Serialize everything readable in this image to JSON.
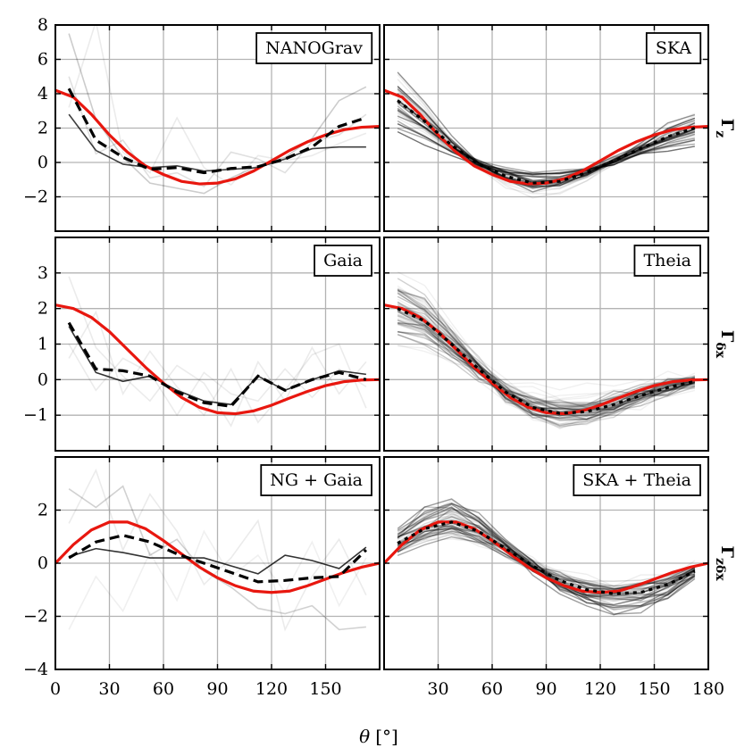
{
  "chart_data": {
    "type": "line",
    "figure": {
      "xlabel": "θ [°]",
      "xlabel_symbol": "θ",
      "xlabel_unit": "[°]",
      "xlim": [
        0,
        180
      ],
      "colors": {
        "theory": "#e8170f",
        "mean": "#000000",
        "realization": "#000000",
        "grid": "#b3b3b3"
      },
      "line_styles": {
        "theory": "solid red",
        "left_mean": "dashed black",
        "right_mean": "dotted black over red",
        "realizations": "thin grey"
      }
    },
    "x_ticks": {
      "left": [
        "0",
        "30",
        "60",
        "90",
        "120",
        "150"
      ],
      "right": [
        "30",
        "60",
        "90",
        "120",
        "150",
        "180"
      ]
    },
    "row_labels": [
      {
        "main": "Γ",
        "sub": "z"
      },
      {
        "main": "Γ",
        "sub": "δx"
      },
      {
        "main": "Γ",
        "sub": "zδx"
      }
    ],
    "panels": [
      {
        "id": "nanograv",
        "label": "NANOGrav",
        "row": 0,
        "col": 0,
        "ylim": [
          -4,
          8
        ],
        "yticks": [
          -2,
          0,
          2,
          4,
          6,
          8
        ],
        "ytick_labels": [
          "−2",
          "0",
          "2",
          "4",
          "6",
          "8"
        ],
        "theory": {
          "x": [
            0,
            10,
            20,
            30,
            40,
            50,
            60,
            70,
            80,
            90,
            100,
            110,
            120,
            130,
            140,
            150,
            160,
            170,
            180
          ],
          "y": [
            4.2,
            3.8,
            2.8,
            1.6,
            0.6,
            -0.2,
            -0.7,
            -1.1,
            -1.25,
            -1.2,
            -0.95,
            -0.5,
            0.1,
            0.7,
            1.2,
            1.6,
            1.9,
            2.05,
            2.1
          ]
        },
        "mean": {
          "x": [
            7.5,
            22.5,
            37.5,
            52.5,
            67.5,
            82.5,
            97.5,
            112.5,
            127.5,
            142.5,
            157.5,
            172.5
          ],
          "y": [
            4.3,
            1.3,
            0.3,
            -0.4,
            -0.3,
            -0.6,
            -0.35,
            -0.25,
            0.2,
            0.9,
            2.1,
            2.6
          ]
        },
        "realizations": [
          {
            "x": [
              7.5,
              22.5,
              37.5,
              52.5,
              67.5,
              82.5,
              97.5,
              112.5,
              127.5,
              142.5,
              157.5,
              172.5
            ],
            "y": [
              2.8,
              0.7,
              -0.1,
              -0.3,
              -0.2,
              -0.5,
              -0.4,
              -0.3,
              0.2,
              0.8,
              0.9,
              0.9
            ],
            "opacity": 0.75
          },
          {
            "x": [
              7.5,
              22.5,
              37.5,
              52.5,
              67.5,
              82.5,
              97.5,
              112.5,
              127.5,
              142.5,
              157.5,
              172.5
            ],
            "y": [
              7.5,
              2.5,
              0.3,
              -1.2,
              -1.5,
              -1.8,
              -0.9,
              -0.2,
              0.3,
              1.4,
              3.6,
              4.4
            ],
            "opacity": 0.2
          },
          {
            "x": [
              7.5,
              22.5,
              37.5,
              52.5,
              67.5,
              82.5,
              97.5,
              112.5,
              127.5,
              142.5,
              157.5,
              172.5
            ],
            "y": [
              5.0,
              0.5,
              1.3,
              -0.9,
              -0.6,
              -1.4,
              0.6,
              0.2,
              -0.6,
              1.2,
              1.6,
              2.8
            ],
            "opacity": 0.12
          },
          {
            "x": [
              7.5,
              22.5,
              37.5,
              52.5,
              67.5,
              82.5,
              97.5,
              112.5,
              127.5,
              142.5,
              157.5,
              172.5
            ],
            "y": [
              3.2,
              8.2,
              0.6,
              -0.6,
              2.6,
              -0.3,
              -1.3,
              0.4,
              0.1,
              0.4,
              1.1,
              1.7
            ],
            "opacity": 0.08
          }
        ]
      },
      {
        "id": "ska",
        "label": "SKA",
        "row": 0,
        "col": 1,
        "ylim": [
          -4,
          8
        ],
        "yticks": [
          -2,
          0,
          2,
          4,
          6,
          8
        ],
        "ytick_labels": [
          "−2",
          "0",
          "2",
          "4",
          "6",
          "8"
        ],
        "theory": {
          "x": [
            0,
            10,
            20,
            30,
            40,
            50,
            60,
            70,
            80,
            90,
            100,
            110,
            120,
            130,
            140,
            150,
            160,
            170,
            180
          ],
          "y": [
            4.2,
            3.8,
            2.8,
            1.6,
            0.6,
            -0.2,
            -0.7,
            -1.1,
            -1.25,
            -1.2,
            -0.95,
            -0.5,
            0.1,
            0.7,
            1.2,
            1.6,
            1.9,
            2.05,
            2.1
          ]
        },
        "mean": {
          "x": [
            7.5,
            22.5,
            37.5,
            52.5,
            67.5,
            82.5,
            97.5,
            112.5,
            127.5,
            142.5,
            157.5,
            172.5
          ],
          "y": [
            3.6,
            2.4,
            1.0,
            -0.1,
            -0.8,
            -1.2,
            -1.1,
            -0.6,
            0.1,
            0.8,
            1.5,
            2.0
          ]
        },
        "realization_bundle": {
          "count": 40,
          "spread": 0.32,
          "noise": 0.12,
          "opacity_strong": 0.45,
          "opacity_faint": 0.08
        }
      },
      {
        "id": "gaia",
        "label": "Gaia",
        "row": 1,
        "col": 0,
        "ylim": [
          -2,
          4
        ],
        "yticks": [
          -1,
          0,
          1,
          2,
          3
        ],
        "ytick_labels": [
          "−1",
          "0",
          "1",
          "2",
          "3"
        ],
        "theory": {
          "x": [
            0,
            10,
            20,
            30,
            40,
            50,
            60,
            70,
            80,
            90,
            100,
            110,
            120,
            130,
            140,
            150,
            160,
            170,
            180
          ],
          "y": [
            2.1,
            2.0,
            1.75,
            1.35,
            0.85,
            0.35,
            -0.1,
            -0.5,
            -0.78,
            -0.93,
            -0.96,
            -0.88,
            -0.72,
            -0.52,
            -0.33,
            -0.17,
            -0.06,
            -0.01,
            0.0
          ]
        },
        "mean": {
          "x": [
            7.5,
            22.5,
            37.5,
            52.5,
            67.5,
            82.5,
            97.5,
            112.5,
            127.5,
            142.5,
            157.5,
            172.5
          ],
          "y": [
            1.6,
            0.3,
            0.25,
            0.1,
            -0.35,
            -0.65,
            -0.75,
            0.1,
            -0.3,
            0.0,
            0.2,
            0.0
          ]
        },
        "realizations": [
          {
            "x": [
              7.5,
              22.5,
              37.5,
              52.5,
              67.5,
              82.5,
              97.5,
              112.5,
              127.5,
              142.5,
              157.5,
              172.5
            ],
            "y": [
              1.5,
              0.2,
              -0.05,
              0.1,
              -0.3,
              -0.6,
              -0.7,
              0.1,
              -0.3,
              0.0,
              0.25,
              0.15
            ],
            "opacity": 0.8
          },
          {
            "x": [
              7.5,
              22.5,
              37.5,
              52.5,
              67.5,
              82.5,
              97.5,
              112.5,
              127.5,
              142.5,
              157.5,
              172.5
            ],
            "y": [
              0.6,
              1.9,
              -0.4,
              0.8,
              -0.2,
              -1.0,
              0.3,
              -1.2,
              -0.3,
              0.7,
              1.0,
              -0.8
            ],
            "opacity": 0.08
          },
          {
            "x": [
              7.5,
              22.5,
              37.5,
              52.5,
              67.5,
              82.5,
              97.5,
              112.5,
              127.5,
              142.5,
              157.5,
              172.5
            ],
            "y": [
              2.9,
              0.9,
              0.1,
              -0.6,
              0.4,
              -0.1,
              -1.3,
              0.5,
              -0.6,
              0.9,
              -0.4,
              0.5
            ],
            "opacity": 0.08
          },
          {
            "x": [
              7.5,
              22.5,
              37.5,
              52.5,
              67.5,
              82.5,
              97.5,
              112.5,
              127.5,
              142.5,
              157.5,
              172.5
            ],
            "y": [
              1.0,
              -0.3,
              0.6,
              0.2,
              -1.0,
              0.2,
              -0.4,
              -0.6,
              0.3,
              -0.5,
              0.3,
              -0.2
            ],
            "opacity": 0.08
          }
        ]
      },
      {
        "id": "theia",
        "label": "Theia",
        "row": 1,
        "col": 1,
        "ylim": [
          -2,
          4
        ],
        "yticks": [
          -1,
          0,
          1,
          2,
          3
        ],
        "ytick_labels": [
          "−1",
          "0",
          "1",
          "2",
          "3"
        ],
        "theory": {
          "x": [
            0,
            10,
            20,
            30,
            40,
            50,
            60,
            70,
            80,
            90,
            100,
            110,
            120,
            130,
            140,
            150,
            160,
            170,
            180
          ],
          "y": [
            2.1,
            2.0,
            1.75,
            1.35,
            0.85,
            0.35,
            -0.1,
            -0.5,
            -0.78,
            -0.93,
            -0.96,
            -0.88,
            -0.72,
            -0.52,
            -0.33,
            -0.17,
            -0.06,
            -0.01,
            0.0
          ]
        },
        "mean": {
          "x": [
            7.5,
            22.5,
            37.5,
            52.5,
            67.5,
            82.5,
            97.5,
            112.5,
            127.5,
            142.5,
            157.5,
            172.5
          ],
          "y": [
            2.0,
            1.65,
            1.0,
            0.3,
            -0.35,
            -0.78,
            -0.95,
            -0.9,
            -0.7,
            -0.45,
            -0.22,
            -0.05
          ]
        },
        "realization_bundle": {
          "count": 60,
          "spread": 0.28,
          "noise": 0.12,
          "opacity_strong": 0.2,
          "opacity_faint": 0.06
        }
      },
      {
        "id": "ng_gaia",
        "label": "NG + Gaia",
        "row": 2,
        "col": 0,
        "ylim": [
          -4,
          4
        ],
        "yticks": [
          -4,
          -2,
          0,
          2
        ],
        "ytick_labels": [
          "−4",
          "−2",
          "0",
          "2"
        ],
        "theory": {
          "x": [
            0,
            10,
            20,
            30,
            40,
            50,
            60,
            70,
            80,
            90,
            100,
            110,
            120,
            130,
            140,
            150,
            160,
            170,
            180
          ],
          "y": [
            0.0,
            0.7,
            1.25,
            1.55,
            1.55,
            1.3,
            0.85,
            0.35,
            -0.15,
            -0.55,
            -0.85,
            -1.05,
            -1.1,
            -1.05,
            -0.85,
            -0.6,
            -0.35,
            -0.15,
            0.0
          ]
        },
        "mean": {
          "x": [
            7.5,
            22.5,
            37.5,
            52.5,
            67.5,
            82.5,
            97.5,
            112.5,
            127.5,
            142.5,
            157.5,
            172.5
          ],
          "y": [
            0.2,
            0.8,
            1.05,
            0.8,
            0.35,
            0.0,
            -0.35,
            -0.7,
            -0.65,
            -0.55,
            -0.5,
            0.5
          ]
        },
        "realizations": [
          {
            "x": [
              7.5,
              22.5,
              37.5,
              52.5,
              67.5,
              82.5,
              97.5,
              112.5,
              127.5,
              142.5,
              157.5,
              172.5
            ],
            "y": [
              0.25,
              0.55,
              0.4,
              0.2,
              0.2,
              0.2,
              -0.1,
              -0.4,
              0.3,
              0.1,
              -0.2,
              0.6
            ],
            "opacity": 0.8
          },
          {
            "x": [
              7.5,
              22.5,
              37.5,
              52.5,
              67.5,
              82.5,
              97.5,
              112.5,
              127.5,
              142.5,
              157.5,
              172.5
            ],
            "y": [
              2.8,
              2.1,
              2.9,
              0.3,
              0.9,
              -0.3,
              -0.9,
              -1.7,
              -1.9,
              -1.6,
              -2.5,
              -2.4
            ],
            "opacity": 0.18
          },
          {
            "x": [
              7.5,
              22.5,
              37.5,
              52.5,
              67.5,
              82.5,
              97.5,
              112.5,
              127.5,
              142.5,
              157.5,
              172.5
            ],
            "y": [
              1.5,
              3.5,
              0.5,
              2.6,
              1.2,
              -0.8,
              0.2,
              1.6,
              -2.5,
              -0.5,
              0.9,
              -1.2
            ],
            "opacity": 0.08
          },
          {
            "x": [
              7.5,
              22.5,
              37.5,
              52.5,
              67.5,
              82.5,
              97.5,
              112.5,
              127.5,
              142.5,
              157.5,
              172.5
            ],
            "y": [
              -2.5,
              -0.5,
              -1.8,
              0.4,
              -1.4,
              1.2,
              -0.5,
              0.3,
              -1.1,
              0.8,
              -1.6,
              0.2
            ],
            "opacity": 0.06
          }
        ]
      },
      {
        "id": "ska_theia",
        "label": "SKA + Theia",
        "row": 2,
        "col": 1,
        "ylim": [
          -4,
          4
        ],
        "yticks": [
          -4,
          -2,
          0,
          2
        ],
        "ytick_labels": [
          "−4",
          "−2",
          "0",
          "2"
        ],
        "theory": {
          "x": [
            0,
            10,
            20,
            30,
            40,
            50,
            60,
            70,
            80,
            90,
            100,
            110,
            120,
            130,
            140,
            150,
            160,
            170,
            180
          ],
          "y": [
            0.0,
            0.7,
            1.25,
            1.55,
            1.55,
            1.3,
            0.85,
            0.35,
            -0.15,
            -0.55,
            -0.85,
            -1.05,
            -1.1,
            -1.05,
            -0.85,
            -0.6,
            -0.35,
            -0.15,
            0.0
          ]
        },
        "mean": {
          "x": [
            7.5,
            22.5,
            37.5,
            52.5,
            67.5,
            82.5,
            97.5,
            112.5,
            127.5,
            142.5,
            157.5,
            172.5
          ],
          "y": [
            0.75,
            1.3,
            1.55,
            1.2,
            0.55,
            -0.1,
            -0.65,
            -1.0,
            -1.15,
            -1.1,
            -0.8,
            -0.3
          ]
        },
        "realization_bundle": {
          "count": 45,
          "spread": 0.3,
          "noise": 0.15,
          "opacity_strong": 0.3,
          "opacity_faint": 0.07
        }
      }
    ]
  }
}
